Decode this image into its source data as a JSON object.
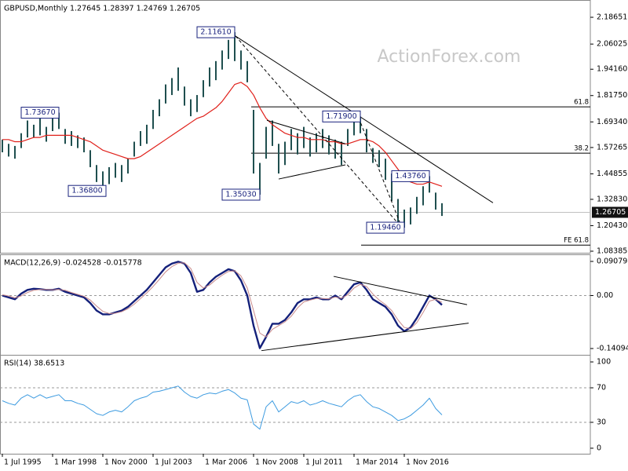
{
  "chart_data": [
    {
      "type": "ohlc",
      "title": "GBPUSD,Monthly  1.27645 1.28397 1.24769 1.26705",
      "watermark": "ActionForex.com",
      "xlim": [
        -1.5,
        374.5
      ],
      "ylim": [
        1.0764,
        2.2606
      ],
      "yticks": [
        2.18651,
        2.06025,
        {
          "value": 1.9416,
          "label": "1.94160"
        },
        {
          "value": 1.8175,
          "label": "1.81750"
        },
        {
          "value": 1.6934,
          "label": "1.69340"
        },
        1.57265,
        1.44855,
        {
          "value": 1.3283,
          "label": "1.32830"
        },
        {
          "value": 1.2043,
          "label": "1.20430"
        },
        1.08385
      ],
      "x": [
        0,
        4,
        8,
        12,
        16,
        20,
        24,
        28,
        32,
        36,
        40,
        44,
        48,
        52,
        56,
        60,
        64,
        68,
        72,
        76,
        80,
        84,
        88,
        92,
        96,
        100,
        104,
        108,
        112,
        116,
        120,
        124,
        128,
        132,
        136,
        140,
        144,
        148,
        152,
        156,
        160,
        164,
        168,
        172,
        176,
        180,
        184,
        188,
        192,
        196,
        200,
        204,
        208,
        212,
        216,
        220,
        224,
        228,
        232,
        236,
        240,
        244,
        248,
        252,
        256,
        260,
        264,
        268,
        272,
        276,
        280
      ],
      "high": [
        1.61,
        1.59,
        1.58,
        1.64,
        1.7,
        1.68,
        1.71,
        1.67,
        1.72,
        1.7367,
        1.66,
        1.65,
        1.63,
        1.62,
        1.56,
        1.49,
        1.46,
        1.48,
        1.5,
        1.49,
        1.52,
        1.6,
        1.65,
        1.68,
        1.75,
        1.8,
        1.87,
        1.9,
        1.95,
        1.86,
        1.8,
        1.82,
        1.89,
        1.95,
        1.98,
        2.03,
        2.08,
        2.1161,
        2.03,
        1.98,
        1.75,
        1.5,
        1.67,
        1.7,
        1.59,
        1.6,
        1.66,
        1.64,
        1.67,
        1.62,
        1.64,
        1.66,
        1.63,
        1.61,
        1.6,
        1.66,
        1.72,
        1.719,
        1.66,
        1.57,
        1.56,
        1.52,
        1.45,
        1.33,
        1.28,
        1.29,
        1.34,
        1.39,
        1.4376,
        1.36,
        1.31
      ],
      "low": [
        1.55,
        1.53,
        1.52,
        1.57,
        1.62,
        1.62,
        1.63,
        1.6,
        1.65,
        1.66,
        1.59,
        1.58,
        1.57,
        1.55,
        1.48,
        1.41,
        1.368,
        1.4,
        1.43,
        1.41,
        1.45,
        1.53,
        1.58,
        1.59,
        1.66,
        1.72,
        1.78,
        1.82,
        1.84,
        1.77,
        1.72,
        1.74,
        1.81,
        1.86,
        1.89,
        1.94,
        1.99,
        1.98,
        1.94,
        1.88,
        1.45,
        1.3503,
        1.52,
        1.58,
        1.45,
        1.49,
        1.56,
        1.54,
        1.57,
        1.53,
        1.55,
        1.57,
        1.54,
        1.52,
        1.49,
        1.58,
        1.63,
        1.64,
        1.55,
        1.5,
        1.48,
        1.42,
        1.32,
        1.2,
        1.1946,
        1.21,
        1.26,
        1.3,
        1.36,
        1.28,
        1.25
      ],
      "bar_color": "#1f4f4f",
      "ma_color": "#e0201a",
      "ma_values": [
        1.61,
        1.61,
        1.6,
        1.6,
        1.61,
        1.62,
        1.62,
        1.63,
        1.63,
        1.63,
        1.63,
        1.63,
        1.62,
        1.61,
        1.6,
        1.58,
        1.56,
        1.55,
        1.54,
        1.53,
        1.52,
        1.52,
        1.53,
        1.55,
        1.57,
        1.59,
        1.61,
        1.63,
        1.65,
        1.67,
        1.69,
        1.71,
        1.72,
        1.74,
        1.76,
        1.79,
        1.83,
        1.87,
        1.88,
        1.86,
        1.82,
        1.76,
        1.71,
        1.68,
        1.66,
        1.64,
        1.63,
        1.62,
        1.62,
        1.61,
        1.61,
        1.61,
        1.6,
        1.6,
        1.59,
        1.59,
        1.6,
        1.61,
        1.61,
        1.6,
        1.58,
        1.55,
        1.51,
        1.47,
        1.43,
        1.41,
        1.4,
        1.4,
        1.41,
        1.4,
        1.39
      ],
      "trendlines": [
        {
          "x": [
            147,
            312.5
          ],
          "y": [
            2.105,
            1.312
          ],
          "dashed": false
        },
        {
          "x": [
            148.5,
            254.5
          ],
          "y": [
            2.098,
            1.194
          ],
          "dashed": true
        },
        {
          "x": [
            227,
            254.5
          ],
          "y": [
            1.712,
            1.194
          ],
          "dashed": true
        },
        {
          "x": [
            168.5,
            218.5
          ],
          "y": [
            1.701,
            1.59
          ],
          "dashed": false
        },
        {
          "x": [
            176,
            218.5
          ],
          "y": [
            1.424,
            1.491
          ],
          "dashed": false
        }
      ],
      "levels": [
        {
          "name": "61.8",
          "price": 1.7643,
          "x_start": 158.5
        },
        {
          "name": "38.2",
          "price": 1.5458,
          "x_start": 158.5
        },
        {
          "name": "FE 61.8",
          "price": 1.1125,
          "x_start": 228.5
        }
      ],
      "annotations": [
        {
          "value": 2.1161,
          "label": "2.11610",
          "x": 148
        },
        {
          "value": 1.7367,
          "label": "1.73670",
          "x": 36
        },
        {
          "value": 1.368,
          "label": "1.36800",
          "x": 66
        },
        {
          "value": 1.3503,
          "label": "1.35030",
          "x": 164
        },
        {
          "value": 1.719,
          "label": "1.71900",
          "x": 228
        },
        {
          "value": 1.4376,
          "label": "1.43760",
          "x": 272
        },
        {
          "value": 1.1946,
          "label": "1.19460",
          "x": 256
        }
      ],
      "last": 1.26705
    },
    {
      "type": "macd",
      "title": "MACD(12,26,9) -0.024528 -0.015778",
      "xlim": [
        -1.5,
        374.5
      ],
      "ylim": [
        -0.1577,
        0.1054
      ],
      "yticks": [
        0.090798,
        {
          "value": 0,
          "label": "0.00"
        },
        -0.14094
      ],
      "dashed_at": [
        0
      ],
      "x": [
        0,
        4,
        8,
        12,
        16,
        20,
        24,
        28,
        32,
        36,
        40,
        44,
        48,
        52,
        56,
        60,
        64,
        68,
        72,
        76,
        80,
        84,
        88,
        92,
        96,
        100,
        104,
        108,
        112,
        116,
        120,
        124,
        128,
        132,
        136,
        140,
        144,
        148,
        152,
        156,
        160,
        164,
        168,
        172,
        176,
        180,
        184,
        188,
        192,
        196,
        200,
        204,
        208,
        212,
        216,
        220,
        224,
        228,
        232,
        236,
        240,
        244,
        248,
        252,
        256,
        260,
        264,
        268,
        272,
        276,
        280
      ],
      "series": [
        {
          "color": "#14207a",
          "width": 2.4,
          "values": [
            0.0,
            -0.005,
            -0.01,
            0.005,
            0.015,
            0.018,
            0.017,
            0.015,
            0.015,
            0.018,
            0.01,
            0.005,
            0.0,
            -0.005,
            -0.02,
            -0.04,
            -0.05,
            -0.05,
            -0.045,
            -0.04,
            -0.03,
            -0.015,
            0.0,
            0.015,
            0.035,
            0.055,
            0.075,
            0.085,
            0.09,
            0.085,
            0.06,
            0.01,
            0.015,
            0.035,
            0.05,
            0.06,
            0.07,
            0.065,
            0.04,
            0.0,
            -0.08,
            -0.14,
            -0.11,
            -0.075,
            -0.075,
            -0.065,
            -0.045,
            -0.02,
            -0.01,
            -0.01,
            -0.005,
            -0.01,
            -0.01,
            0.0,
            -0.01,
            0.01,
            0.03,
            0.035,
            0.015,
            -0.01,
            -0.02,
            -0.03,
            -0.05,
            -0.08,
            -0.095,
            -0.085,
            -0.06,
            -0.03,
            0.0,
            -0.01,
            -0.025
          ]
        },
        {
          "color": "#c98a8a",
          "width": 1,
          "values": [
            0.002,
            -0.001,
            -0.006,
            -0.001,
            0.008,
            0.014,
            0.016,
            0.016,
            0.015,
            0.016,
            0.014,
            0.008,
            0.003,
            -0.002,
            -0.012,
            -0.028,
            -0.042,
            -0.048,
            -0.047,
            -0.043,
            -0.035,
            -0.023,
            -0.008,
            0.007,
            0.024,
            0.043,
            0.063,
            0.077,
            0.086,
            0.087,
            0.072,
            0.035,
            0.02,
            0.028,
            0.042,
            0.054,
            0.064,
            0.066,
            0.052,
            0.02,
            -0.04,
            -0.1,
            -0.11,
            -0.09,
            -0.08,
            -0.07,
            -0.055,
            -0.033,
            -0.017,
            -0.012,
            -0.008,
            -0.008,
            -0.009,
            -0.004,
            -0.007,
            0.002,
            0.02,
            0.03,
            0.024,
            0.004,
            -0.012,
            -0.024,
            -0.04,
            -0.065,
            -0.085,
            -0.088,
            -0.072,
            -0.045,
            -0.015,
            -0.01,
            -0.018
          ]
        }
      ],
      "trendlines": [
        {
          "x": [
            211,
            296
          ],
          "y": [
            0.051,
            -0.0243
          ],
          "dashed": false
        },
        {
          "x": [
            165,
            297
          ],
          "y": [
            -0.1466,
            -0.0734
          ],
          "dashed": false
        }
      ]
    },
    {
      "type": "line",
      "title": "RSI(14) 38.6513",
      "xlim": [
        -1.5,
        374.5
      ],
      "ylim": [
        -6.4,
        106.4
      ],
      "yticks": [
        100,
        70,
        30,
        0
      ],
      "dashed_at": [
        70,
        30
      ],
      "xticks": [
        {
          "value": 0,
          "label": "1 Jul 1995"
        },
        {
          "value": 32,
          "label": "1 Mar 1998"
        },
        {
          "value": 64,
          "label": "1 Nov 2000"
        },
        {
          "value": 96,
          "label": "1 Jul 2003"
        },
        {
          "value": 128,
          "label": "1 Mar 2006"
        },
        {
          "value": 160,
          "label": "1 Nov 2008"
        },
        {
          "value": 192,
          "label": "1 Jul 2011"
        },
        {
          "value": 224,
          "label": "1 Mar 2014"
        },
        {
          "value": 256,
          "label": "1 Nov 2016"
        }
      ],
      "x": [
        0,
        4,
        8,
        12,
        16,
        20,
        24,
        28,
        32,
        36,
        40,
        44,
        48,
        52,
        56,
        60,
        64,
        68,
        72,
        76,
        80,
        84,
        88,
        92,
        96,
        100,
        104,
        108,
        112,
        116,
        120,
        124,
        128,
        132,
        136,
        140,
        144,
        148,
        152,
        156,
        160,
        164,
        168,
        172,
        176,
        180,
        184,
        188,
        192,
        196,
        200,
        204,
        208,
        212,
        216,
        220,
        224,
        228,
        232,
        236,
        240,
        244,
        248,
        252,
        256,
        260,
        264,
        268,
        272,
        276,
        280
      ],
      "series": [
        {
          "color": "#3d9be0",
          "width": 1,
          "values": [
            55,
            52,
            50,
            58,
            62,
            58,
            62,
            58,
            60,
            62,
            55,
            55,
            52,
            50,
            45,
            40,
            38,
            42,
            44,
            42,
            48,
            55,
            58,
            60,
            65,
            66,
            68,
            70,
            72,
            65,
            60,
            58,
            62,
            64,
            63,
            66,
            68,
            64,
            58,
            56,
            28,
            22,
            48,
            55,
            42,
            48,
            54,
            52,
            55,
            50,
            52,
            55,
            52,
            50,
            48,
            55,
            60,
            62,
            54,
            48,
            46,
            42,
            38,
            32,
            34,
            38,
            44,
            50,
            58,
            46,
            38.6513
          ]
        }
      ]
    }
  ]
}
